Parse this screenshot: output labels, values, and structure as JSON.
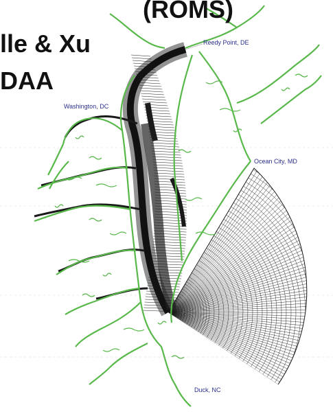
{
  "headings": {
    "line1": "(ROMS)",
    "line2": "lle & Xu",
    "line3": "DAA"
  },
  "places": {
    "reedy_point": "Reedy Point, DE",
    "washington": "Washington, DC",
    "ocean_city": "Ocean City, MD",
    "duck": "Duck, NC"
  },
  "colors": {
    "shoreline": "#58b84a",
    "grid": "#1a1a1a",
    "label": "#2a2f8a",
    "background": "#ffffff"
  }
}
